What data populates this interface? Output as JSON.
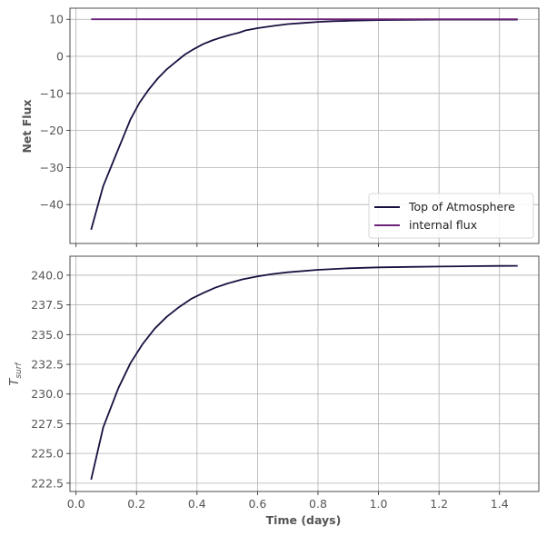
{
  "chart_data": [
    {
      "type": "line",
      "ylabel": "Net Flux",
      "xlabel": "",
      "xlim": [
        -0.02,
        1.53
      ],
      "ylim": [
        -50.5,
        13
      ],
      "xticks": [
        0.0,
        0.2,
        0.4,
        0.6,
        0.8,
        1.0,
        1.2,
        1.4
      ],
      "yticks": [
        10,
        0,
        -10,
        -20,
        -30,
        -40
      ],
      "ytick_labels": [
        "10",
        "0",
        "−10",
        "−20",
        "−30",
        "−40"
      ],
      "grid": true,
      "legend": "lower-right",
      "series": [
        {
          "name": "Top of Atmosphere",
          "color": "#1a1040",
          "x": [
            0.05,
            0.09,
            0.13,
            0.15,
            0.18,
            0.21,
            0.24,
            0.27,
            0.3,
            0.33,
            0.36,
            0.39,
            0.42,
            0.45,
            0.48,
            0.51,
            0.54,
            0.56,
            0.6,
            0.65,
            0.7,
            0.75,
            0.8,
            0.85,
            0.9,
            0.95,
            1.0,
            1.1,
            1.2,
            1.3,
            1.4,
            1.46
          ],
          "y": [
            -46.8,
            -35,
            -27,
            -23,
            -17,
            -12.5,
            -9,
            -6,
            -3.5,
            -1.5,
            0.5,
            2,
            3.3,
            4.3,
            5.1,
            5.8,
            6.4,
            7.0,
            7.6,
            8.2,
            8.7,
            9.0,
            9.3,
            9.5,
            9.6,
            9.7,
            9.8,
            9.85,
            9.9,
            9.9,
            9.9,
            9.9
          ]
        },
        {
          "name": "internal flux",
          "color": "#6b2278",
          "x": [
            0.05,
            1.46
          ],
          "y": [
            10,
            10
          ]
        }
      ]
    },
    {
      "type": "line",
      "ylabel_main": "T",
      "ylabel_sub": "surf",
      "xlabel": "Time (days)",
      "xlim": [
        -0.02,
        1.53
      ],
      "ylim": [
        221.8,
        241.6
      ],
      "xticks": [
        0.0,
        0.2,
        0.4,
        0.6,
        0.8,
        1.0,
        1.2,
        1.4
      ],
      "xtick_labels": [
        "0.0",
        "0.2",
        "0.4",
        "0.6",
        "0.8",
        "1.0",
        "1.2",
        "1.4"
      ],
      "yticks": [
        240.0,
        237.5,
        235.0,
        232.5,
        230.0,
        227.5,
        225.0,
        222.5
      ],
      "ytick_labels": [
        "240.0",
        "237.5",
        "235.0",
        "232.5",
        "230.0",
        "227.5",
        "225.0",
        "222.5"
      ],
      "grid": true,
      "series": [
        {
          "color": "#1a1040",
          "x": [
            0.05,
            0.09,
            0.14,
            0.18,
            0.22,
            0.26,
            0.3,
            0.34,
            0.38,
            0.42,
            0.46,
            0.5,
            0.55,
            0.6,
            0.65,
            0.7,
            0.8,
            0.9,
            1.0,
            1.1,
            1.2,
            1.3,
            1.4,
            1.46
          ],
          "y": [
            222.8,
            227.2,
            230.5,
            232.6,
            234.2,
            235.5,
            236.5,
            237.3,
            238.0,
            238.5,
            238.95,
            239.3,
            239.65,
            239.9,
            240.1,
            240.25,
            240.45,
            240.58,
            240.66,
            240.7,
            240.73,
            240.76,
            240.78,
            240.79
          ]
        }
      ]
    }
  ]
}
